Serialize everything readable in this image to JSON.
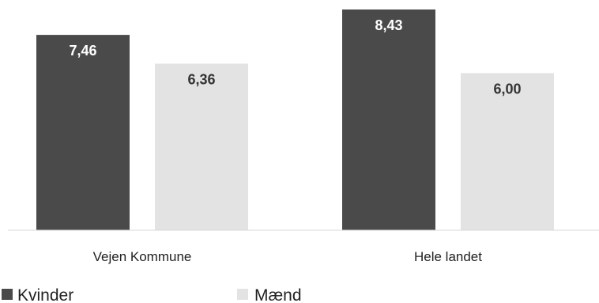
{
  "chart_data": {
    "type": "bar",
    "title": "",
    "xlabel": "",
    "ylabel": "",
    "categories": [
      "Vejen Kommune",
      "Hele landet"
    ],
    "series": [
      {
        "name": "Kvinder",
        "values": [
          7.46,
          8.43
        ],
        "labels": [
          "7,46",
          "8,43"
        ],
        "color": "#4a4a4a",
        "label_color": "#ffffff"
      },
      {
        "name": "Mænd",
        "values": [
          6.36,
          6.0
        ],
        "labels": [
          "6,36",
          "6,00"
        ],
        "color": "#e3e3e3",
        "label_color": "#333333"
      }
    ],
    "ylim": [
      0,
      8.43
    ],
    "grid": false,
    "legend": "bottom-left"
  }
}
